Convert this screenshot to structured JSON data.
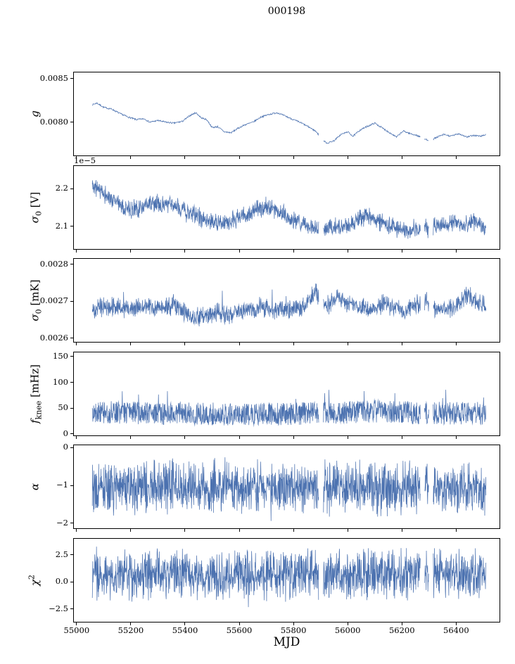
{
  "chart_data": {
    "type": "line",
    "title": "000198",
    "xlabel": "MJD",
    "line_color": "#4c72b0",
    "xlim": [
      54990,
      56560
    ],
    "xticks": [
      55000,
      55200,
      55400,
      55600,
      55800,
      56000,
      56200,
      56400
    ],
    "xtick_labels": [
      "55000",
      "55200",
      "55400",
      "55600",
      "55800",
      "56000",
      "56200",
      "56400"
    ],
    "x_range_data": [
      55058,
      56510
    ],
    "gaps": [
      [
        55893,
        55910
      ],
      [
        56268,
        56283
      ],
      [
        56299,
        56315
      ]
    ],
    "panels": [
      {
        "name": "g",
        "ylabel_pre": "g",
        "ylabel_sub": "",
        "ylabel_sup": "",
        "ylabel_post": "",
        "offset_label": "",
        "ylim": [
          0.00762,
          0.00857
        ],
        "yticks": [
          {
            "v": 0.008,
            "label": "0.0080"
          },
          {
            "v": 0.0085,
            "label": "0.0085"
          }
        ],
        "trend": [
          [
            55058,
            0.0082
          ],
          [
            55075,
            0.00822
          ],
          [
            55100,
            0.00817
          ],
          [
            55130,
            0.00815
          ],
          [
            55160,
            0.0081
          ],
          [
            55190,
            0.00806
          ],
          [
            55220,
            0.00803
          ],
          [
            55250,
            0.00804
          ],
          [
            55270,
            0.008
          ],
          [
            55300,
            0.00802
          ],
          [
            55330,
            0.008
          ],
          [
            55360,
            0.00799
          ],
          [
            55390,
            0.00801
          ],
          [
            55420,
            0.00808
          ],
          [
            55440,
            0.00811
          ],
          [
            55460,
            0.00805
          ],
          [
            55480,
            0.00803
          ],
          [
            55500,
            0.00794
          ],
          [
            55520,
            0.00795
          ],
          [
            55545,
            0.00789
          ],
          [
            55570,
            0.00788
          ],
          [
            55595,
            0.00793
          ],
          [
            55620,
            0.00797
          ],
          [
            55650,
            0.008
          ],
          [
            55680,
            0.00806
          ],
          [
            55710,
            0.00809
          ],
          [
            55740,
            0.00811
          ],
          [
            55770,
            0.00807
          ],
          [
            55800,
            0.00803
          ],
          [
            55830,
            0.00799
          ],
          [
            55860,
            0.00794
          ],
          [
            55885,
            0.00789
          ],
          [
            55905,
            0.0078
          ],
          [
            55925,
            0.00776
          ],
          [
            55950,
            0.00779
          ],
          [
            55975,
            0.00786
          ],
          [
            56000,
            0.00789
          ],
          [
            56020,
            0.00784
          ],
          [
            56045,
            0.00791
          ],
          [
            56070,
            0.00795
          ],
          [
            56100,
            0.00799
          ],
          [
            56130,
            0.00793
          ],
          [
            56155,
            0.00788
          ],
          [
            56180,
            0.00783
          ],
          [
            56205,
            0.0079
          ],
          [
            56230,
            0.00787
          ],
          [
            56255,
            0.00785
          ],
          [
            56280,
            0.00781
          ],
          [
            56305,
            0.00779
          ],
          [
            56330,
            0.00783
          ],
          [
            56355,
            0.00786
          ],
          [
            56380,
            0.00784
          ],
          [
            56410,
            0.00787
          ],
          [
            56440,
            0.00783
          ],
          [
            56465,
            0.00785
          ],
          [
            56490,
            0.00784
          ],
          [
            56510,
            0.00786
          ]
        ],
        "noise": {
          "model": "uniform",
          "amp": 9e-06,
          "spike_prob": 0,
          "spike_amp": 0,
          "spike_dir": 0,
          "clamp": [
            0.00763,
            0.00856
          ],
          "n": 1000,
          "seed": 7
        }
      },
      {
        "name": "sigma0_V",
        "ylabel_pre": "σ",
        "ylabel_sub": "0",
        "ylabel_sup": "",
        "ylabel_post": " [V]",
        "offset_label": "1e−5",
        "ylim": [
          2.04,
          2.26
        ],
        "yticks": [
          {
            "v": 2.1,
            "label": "2.1"
          },
          {
            "v": 2.2,
            "label": "2.2"
          }
        ],
        "trend": [
          [
            55058,
            2.21
          ],
          [
            55080,
            2.2
          ],
          [
            55110,
            2.18
          ],
          [
            55140,
            2.17
          ],
          [
            55170,
            2.155
          ],
          [
            55200,
            2.145
          ],
          [
            55230,
            2.15
          ],
          [
            55260,
            2.16
          ],
          [
            55290,
            2.16
          ],
          [
            55320,
            2.16
          ],
          [
            55350,
            2.155
          ],
          [
            55380,
            2.15
          ],
          [
            55410,
            2.135
          ],
          [
            55440,
            2.13
          ],
          [
            55470,
            2.12
          ],
          [
            55500,
            2.11
          ],
          [
            55530,
            2.105
          ],
          [
            55560,
            2.11
          ],
          [
            55590,
            2.12
          ],
          [
            55620,
            2.13
          ],
          [
            55650,
            2.14
          ],
          [
            55680,
            2.15
          ],
          [
            55710,
            2.15
          ],
          [
            55740,
            2.14
          ],
          [
            55770,
            2.13
          ],
          [
            55800,
            2.115
          ],
          [
            55830,
            2.105
          ],
          [
            55860,
            2.1
          ],
          [
            55890,
            2.09
          ],
          [
            55915,
            2.095
          ],
          [
            55950,
            2.1
          ],
          [
            55980,
            2.1
          ],
          [
            56010,
            2.105
          ],
          [
            56040,
            2.12
          ],
          [
            56070,
            2.125
          ],
          [
            56100,
            2.12
          ],
          [
            56130,
            2.11
          ],
          [
            56160,
            2.1
          ],
          [
            56190,
            2.09
          ],
          [
            56220,
            2.09
          ],
          [
            56250,
            2.095
          ],
          [
            56280,
            2.09
          ],
          [
            56310,
            2.1
          ],
          [
            56340,
            2.1
          ],
          [
            56370,
            2.105
          ],
          [
            56400,
            2.11
          ],
          [
            56430,
            2.105
          ],
          [
            56460,
            2.11
          ],
          [
            56490,
            2.105
          ],
          [
            56510,
            2.1
          ]
        ],
        "noise": {
          "model": "triangular",
          "amp": 0.028,
          "spike_prob": 0.004,
          "spike_amp": 0.02,
          "spike_dir": 0,
          "clamp": [
            2.045,
            2.255
          ],
          "n": 1500,
          "seed": 11
        }
      },
      {
        "name": "sigma0_mK",
        "ylabel_pre": "σ",
        "ylabel_sub": "0",
        "ylabel_sup": "",
        "ylabel_post": " [mK]",
        "offset_label": "",
        "ylim": [
          0.00259,
          0.002815
        ],
        "yticks": [
          {
            "v": 0.0026,
            "label": "0.0026"
          },
          {
            "v": 0.0027,
            "label": "0.0027"
          },
          {
            "v": 0.0028,
            "label": "0.0028"
          }
        ],
        "trend": [
          [
            55058,
            0.00268
          ],
          [
            55120,
            0.002685
          ],
          [
            55180,
            0.00268
          ],
          [
            55240,
            0.002685
          ],
          [
            55300,
            0.00268
          ],
          [
            55360,
            0.00269
          ],
          [
            55400,
            0.00267
          ],
          [
            55440,
            0.002655
          ],
          [
            55480,
            0.00266
          ],
          [
            55520,
            0.00267
          ],
          [
            55560,
            0.002665
          ],
          [
            55620,
            0.002675
          ],
          [
            55680,
            0.00268
          ],
          [
            55740,
            0.002675
          ],
          [
            55800,
            0.00268
          ],
          [
            55850,
            0.00269
          ],
          [
            55880,
            0.00273
          ],
          [
            55900,
            0.0027
          ],
          [
            55930,
            0.00269
          ],
          [
            55960,
            0.002715
          ],
          [
            55990,
            0.0027
          ],
          [
            56020,
            0.00269
          ],
          [
            56060,
            0.00268
          ],
          [
            56100,
            0.002675
          ],
          [
            56140,
            0.0027
          ],
          [
            56170,
            0.00268
          ],
          [
            56210,
            0.002675
          ],
          [
            56250,
            0.00269
          ],
          [
            56290,
            0.0027
          ],
          [
            56330,
            0.002675
          ],
          [
            56370,
            0.00268
          ],
          [
            56410,
            0.00269
          ],
          [
            56440,
            0.00272
          ],
          [
            56470,
            0.0027
          ],
          [
            56510,
            0.002685
          ]
        ],
        "noise": {
          "model": "triangular",
          "amp": 3e-05,
          "spike_prob": 0.008,
          "spike_amp": 3e-05,
          "spike_dir": 1,
          "clamp": [
            0.002595,
            0.00281
          ],
          "n": 1500,
          "seed": 13
        }
      },
      {
        "name": "f_knee",
        "ylabel_pre": "f",
        "ylabel_sub": "knee",
        "ylabel_sup": "",
        "ylabel_post": " [mHz]",
        "offset_label": "",
        "ylim": [
          -3,
          158
        ],
        "yticks": [
          {
            "v": 0,
            "label": "0"
          },
          {
            "v": 50,
            "label": "50"
          },
          {
            "v": 100,
            "label": "100"
          },
          {
            "v": 150,
            "label": "150"
          }
        ],
        "trend": [
          [
            55058,
            42
          ],
          [
            55300,
            40
          ],
          [
            55600,
            38
          ],
          [
            55900,
            40
          ],
          [
            56100,
            44
          ],
          [
            56300,
            40
          ],
          [
            56510,
            40
          ]
        ],
        "noise": {
          "model": "uniform",
          "amp": 22,
          "spike_prob": 0.015,
          "spike_amp": 25,
          "spike_dir": 1,
          "clamp": [
            14,
            150
          ],
          "n": 1500,
          "seed": 17
        }
      },
      {
        "name": "alpha",
        "ylabel_pre": "α",
        "ylabel_sub": "",
        "ylabel_sup": "",
        "ylabel_post": "",
        "offset_label": "",
        "ylim": [
          -2.13,
          0.06
        ],
        "yticks": [
          {
            "v": -2,
            "label": "−2"
          },
          {
            "v": -1,
            "label": "−1"
          },
          {
            "v": 0,
            "label": "0"
          }
        ],
        "trend": [
          [
            55058,
            -1.05
          ],
          [
            55600,
            -1.05
          ],
          [
            56510,
            -1.05
          ]
        ],
        "noise": {
          "model": "triangular",
          "amp": 0.8,
          "spike_prob": 0.01,
          "spike_amp": 0.3,
          "spike_dir": 0,
          "clamp": [
            -2.1,
            -0.12
          ],
          "n": 1600,
          "seed": 19
        }
      },
      {
        "name": "chi2",
        "ylabel_pre": "χ",
        "ylabel_sub": "",
        "ylabel_sup": "2",
        "ylabel_post": "",
        "offset_label": "",
        "ylim": [
          -3.7,
          4.0
        ],
        "yticks": [
          {
            "v": -2.5,
            "label": "−2.5"
          },
          {
            "v": 0.0,
            "label": "0.0"
          },
          {
            "v": 2.5,
            "label": "2.5"
          }
        ],
        "trend": [
          [
            55058,
            0.7
          ],
          [
            56510,
            0.7
          ]
        ],
        "noise": {
          "model": "triangular",
          "amp": 2.6,
          "spike_prob": 0.02,
          "spike_amp": 0.8,
          "spike_dir": 0,
          "clamp": [
            -3.2,
            3.8
          ],
          "n": 1600,
          "seed": 23
        }
      }
    ]
  }
}
